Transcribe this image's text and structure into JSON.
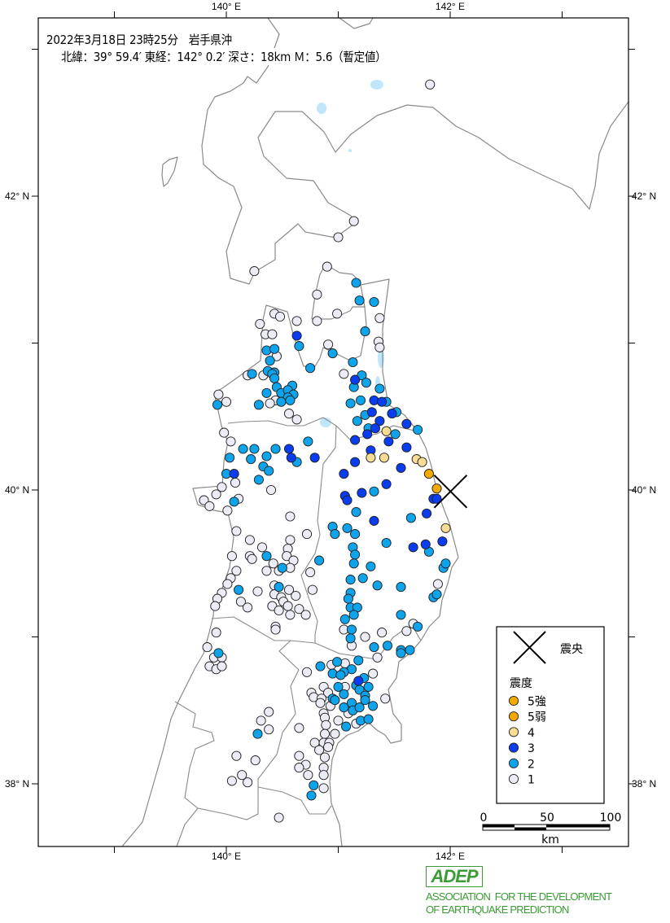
{
  "header": {
    "line1": "2022年3月18日 23時25分　岩手県沖",
    "line2": "北緯：39° 59.4′ 東経：142° 0.2′ 深さ：18km Ｍ：5.6（暫定値）"
  },
  "epicenter": {
    "lat": 39.99,
    "lon": 142.003,
    "depth_km": 18,
    "magnitude": 5.6
  },
  "axes": {
    "lon_labels": [
      {
        "lon": 140,
        "text": "140° E"
      },
      {
        "lon": 142,
        "text": "142° E"
      }
    ],
    "lat_labels": [
      {
        "lat": 42,
        "text": "42° N"
      },
      {
        "lat": 40,
        "text": "40° N"
      },
      {
        "lat": 38,
        "text": "38° N"
      }
    ]
  },
  "legend": {
    "epicenter_label": "震央",
    "intensity_title": "震度",
    "items": [
      {
        "key": "5+",
        "label": "5強",
        "color": "#f5a800"
      },
      {
        "key": "5-",
        "label": "5弱",
        "color": "#f5a800"
      },
      {
        "key": "4",
        "label": "4",
        "color": "#f8dc95"
      },
      {
        "key": "3",
        "label": "3",
        "color": "#0a3cf0"
      },
      {
        "key": "2",
        "label": "2",
        "color": "#0ea4ec"
      },
      {
        "key": "1",
        "label": "1",
        "color": "#ececf6"
      }
    ]
  },
  "scale_bar": {
    "labels": [
      "0",
      "50",
      "100"
    ],
    "unit": "km"
  },
  "logo": {
    "abbr": "ADEP",
    "line1": "ASSOCIATION  FOR THE DEVELOPMENT",
    "line2": "OF EARTHQUAKE PREDICTION"
  },
  "stations": [
    [
      141.81,
      40.11,
      "5-"
    ],
    [
      141.88,
      40.01,
      "5-"
    ],
    [
      141.43,
      40.4,
      "4"
    ],
    [
      141.29,
      40.22,
      "4"
    ],
    [
      141.41,
      40.22,
      "4"
    ],
    [
      141.7,
      40.21,
      "4"
    ],
    [
      141.75,
      40.19,
      "4"
    ],
    [
      141.96,
      39.74,
      "4"
    ],
    [
      141.15,
      40.75,
      "3"
    ],
    [
      141.32,
      40.61,
      "3"
    ],
    [
      141.39,
      40.6,
      "3"
    ],
    [
      141.3,
      40.53,
      "3"
    ],
    [
      141.48,
      40.52,
      "3"
    ],
    [
      141.37,
      40.47,
      "3"
    ],
    [
      141.61,
      40.45,
      "3"
    ],
    [
      141.33,
      40.42,
      "3"
    ],
    [
      141.26,
      40.38,
      "3"
    ],
    [
      141.15,
      40.34,
      "3"
    ],
    [
      141.45,
      40.33,
      "3"
    ],
    [
      141.61,
      40.29,
      "3"
    ],
    [
      141.29,
      40.27,
      "3"
    ],
    [
      141.15,
      40.19,
      "3"
    ],
    [
      141.56,
      40.15,
      "3"
    ],
    [
      141.05,
      40.11,
      "3"
    ],
    [
      141.43,
      40.04,
      "3"
    ],
    [
      141.21,
      39.98,
      "3"
    ],
    [
      141.06,
      39.96,
      "3"
    ],
    [
      141.08,
      39.93,
      "3"
    ],
    [
      141.85,
      39.94,
      "3"
    ],
    [
      141.88,
      39.94,
      "3"
    ],
    [
      141.79,
      39.84,
      "3"
    ],
    [
      141.32,
      39.79,
      "3"
    ],
    [
      141.67,
      39.61,
      "3"
    ],
    [
      141.78,
      39.63,
      "3"
    ],
    [
      141.93,
      39.65,
      "3"
    ],
    [
      140.63,
      41.05,
      "3"
    ],
    [
      140.56,
      40.28,
      "3"
    ],
    [
      140.58,
      40.22,
      "3"
    ],
    [
      140.79,
      40.22,
      "3"
    ],
    [
      140.07,
      40.11,
      "3"
    ],
    [
      141.18,
      38.7,
      "3"
    ],
    [
      141.21,
      40.78,
      "2"
    ],
    [
      141.25,
      40.73,
      "2"
    ],
    [
      141.14,
      40.7,
      "2"
    ],
    [
      141.37,
      40.69,
      "2"
    ],
    [
      141.11,
      40.59,
      "2"
    ],
    [
      141.2,
      40.61,
      "2"
    ],
    [
      141.43,
      40.6,
      "2"
    ],
    [
      141.24,
      40.51,
      "2"
    ],
    [
      141.52,
      40.53,
      "2"
    ],
    [
      141.17,
      40.47,
      "2"
    ],
    [
      141.27,
      40.42,
      "2"
    ],
    [
      141.51,
      40.38,
      "2"
    ],
    [
      141.71,
      40.41,
      "2"
    ],
    [
      141.32,
      39.99,
      "2"
    ],
    [
      141.16,
      39.85,
      "2"
    ],
    [
      141.65,
      39.81,
      "2"
    ],
    [
      140.95,
      39.75,
      "2"
    ],
    [
      140.97,
      39.7,
      "2"
    ],
    [
      141.08,
      39.74,
      "2"
    ],
    [
      141.15,
      39.7,
      "2"
    ],
    [
      141.13,
      39.61,
      "2"
    ],
    [
      141.15,
      39.56,
      "2"
    ],
    [
      141.43,
      39.64,
      "2"
    ],
    [
      141.81,
      39.58,
      "2"
    ],
    [
      141.16,
      41.41,
      "2"
    ],
    [
      141.19,
      41.29,
      "2"
    ],
    [
      141.32,
      41.28,
      "2"
    ],
    [
      141.24,
      41.08,
      "2"
    ],
    [
      140.65,
      40.98,
      "2"
    ],
    [
      140.36,
      40.95,
      "2"
    ],
    [
      140.43,
      40.96,
      "2"
    ],
    [
      140.39,
      40.88,
      "2"
    ],
    [
      140.95,
      40.93,
      "2"
    ],
    [
      141.13,
      40.87,
      "2"
    ],
    [
      140.75,
      40.83,
      "2"
    ],
    [
      140.37,
      40.81,
      "2"
    ],
    [
      140.43,
      40.8,
      "2"
    ],
    [
      140.41,
      40.79,
      "2"
    ],
    [
      140.23,
      40.79,
      "2"
    ],
    [
      140.43,
      40.76,
      "2"
    ],
    [
      140.45,
      40.7,
      "2"
    ],
    [
      140.59,
      40.71,
      "2"
    ],
    [
      140.49,
      40.66,
      "2"
    ],
    [
      140.55,
      40.68,
      "2"
    ],
    [
      140.6,
      40.65,
      "2"
    ],
    [
      140.36,
      40.66,
      "2"
    ],
    [
      140.55,
      40.63,
      "2"
    ],
    [
      140.57,
      40.61,
      "2"
    ],
    [
      140.49,
      40.6,
      "2"
    ],
    [
      140.29,
      40.58,
      "2"
    ],
    [
      139.92,
      40.58,
      "2"
    ],
    [
      140.73,
      40.33,
      "2"
    ],
    [
      140.15,
      40.28,
      "2"
    ],
    [
      140.25,
      40.28,
      "2"
    ],
    [
      140.44,
      40.28,
      "2"
    ],
    [
      140.63,
      40.19,
      "2"
    ],
    [
      140.22,
      40.21,
      "2"
    ],
    [
      140.36,
      40.23,
      "2"
    ],
    [
      140.03,
      40.22,
      "2"
    ],
    [
      140.33,
      40.16,
      "2"
    ],
    [
      140.38,
      40.13,
      "2"
    ],
    [
      140.0,
      40.11,
      "2"
    ],
    [
      140.29,
      40.07,
      "2"
    ],
    [
      140.07,
      39.92,
      "2"
    ],
    [
      140.36,
      39.55,
      "2"
    ],
    [
      140.5,
      39.47,
      "2"
    ],
    [
      140.83,
      39.52,
      "2"
    ],
    [
      140.11,
      39.32,
      "2"
    ],
    [
      140.47,
      39.34,
      "2"
    ],
    [
      139.93,
      38.89,
      "2"
    ],
    [
      141.14,
      39.5,
      "2"
    ],
    [
      141.29,
      39.48,
      "2"
    ],
    [
      141.94,
      39.47,
      "2"
    ],
    [
      141.96,
      39.5,
      "2"
    ],
    [
      141.11,
      39.39,
      "2"
    ],
    [
      141.22,
      39.4,
      "2"
    ],
    [
      141.35,
      39.35,
      "2"
    ],
    [
      141.56,
      39.34,
      "2"
    ],
    [
      141.11,
      39.3,
      "2"
    ],
    [
      141.09,
      39.26,
      "2"
    ],
    [
      141.85,
      39.27,
      "2"
    ],
    [
      141.88,
      39.29,
      "2"
    ],
    [
      141.11,
      39.2,
      "2"
    ],
    [
      141.17,
      39.2,
      "2"
    ],
    [
      141.14,
      39.15,
      "2"
    ],
    [
      141.06,
      39.12,
      "2"
    ],
    [
      141.56,
      39.15,
      "2"
    ],
    [
      141.71,
      39.07,
      "2"
    ],
    [
      141.12,
      39.05,
      "2"
    ],
    [
      141.11,
      38.99,
      "2"
    ],
    [
      141.32,
      38.93,
      "2"
    ],
    [
      141.44,
      38.94,
      "2"
    ],
    [
      141.56,
      38.91,
      "2"
    ],
    [
      141.64,
      38.91,
      "2"
    ],
    [
      141.56,
      38.89,
      "2"
    ],
    [
      141.18,
      38.84,
      "2"
    ],
    [
      140.99,
      38.83,
      "2"
    ],
    [
      140.84,
      38.8,
      "2"
    ],
    [
      141.12,
      38.78,
      "2"
    ],
    [
      141.05,
      38.76,
      "2"
    ],
    [
      140.95,
      38.75,
      "2"
    ],
    [
      141.02,
      38.74,
      "2"
    ],
    [
      141.23,
      38.72,
      "2"
    ],
    [
      141.27,
      38.66,
      "2"
    ],
    [
      141.16,
      38.67,
      "2"
    ],
    [
      141.19,
      38.64,
      "2"
    ],
    [
      141.0,
      38.66,
      "2"
    ],
    [
      141.05,
      38.61,
      "2"
    ],
    [
      141.24,
      38.6,
      "2"
    ],
    [
      141.24,
      38.57,
      "2"
    ],
    [
      140.95,
      38.58,
      "2"
    ],
    [
      140.97,
      38.57,
      "2"
    ],
    [
      141.12,
      38.55,
      "2"
    ],
    [
      141.05,
      38.52,
      "2"
    ],
    [
      141.13,
      38.5,
      "2"
    ],
    [
      141.19,
      38.52,
      "2"
    ],
    [
      141.31,
      38.53,
      "2"
    ],
    [
      141.07,
      38.39,
      "2"
    ],
    [
      141.2,
      38.43,
      "2"
    ],
    [
      141.27,
      38.44,
      "2"
    ],
    [
      140.28,
      38.34,
      "2"
    ],
    [
      140.78,
      37.99,
      "2"
    ],
    [
      140.76,
      37.92,
      "2"
    ],
    [
      141.82,
      42.76,
      "1"
    ],
    [
      141.14,
      41.83,
      "1"
    ],
    [
      141.0,
      41.72,
      "1"
    ],
    [
      140.25,
      41.49,
      "1"
    ],
    [
      140.9,
      41.52,
      "1"
    ],
    [
      140.81,
      41.33,
      "1"
    ],
    [
      141.37,
      41.17,
      "1"
    ],
    [
      140.99,
      41.2,
      "1"
    ],
    [
      140.81,
      41.15,
      "1"
    ],
    [
      140.43,
      41.2,
      "1"
    ],
    [
      140.48,
      41.18,
      "1"
    ],
    [
      140.63,
      41.15,
      "1"
    ],
    [
      140.3,
      41.13,
      "1"
    ],
    [
      140.35,
      41.06,
      "1"
    ],
    [
      140.41,
      41.06,
      "1"
    ],
    [
      141.36,
      41.01,
      "1"
    ],
    [
      141.37,
      40.97,
      "1"
    ],
    [
      140.91,
      40.99,
      "1"
    ],
    [
      140.45,
      40.91,
      "1"
    ],
    [
      141.05,
      40.79,
      "1"
    ],
    [
      140.19,
      40.78,
      "1"
    ],
    [
      140.33,
      40.78,
      "1"
    ],
    [
      140.44,
      40.61,
      "1"
    ],
    [
      140.39,
      40.59,
      "1"
    ],
    [
      139.93,
      40.65,
      "1"
    ],
    [
      140.0,
      40.6,
      "1"
    ],
    [
      140.56,
      40.52,
      "1"
    ],
    [
      140.63,
      40.48,
      "1"
    ],
    [
      139.98,
      40.39,
      "1"
    ],
    [
      140.04,
      40.33,
      "1"
    ],
    [
      140.08,
      40.05,
      "1"
    ],
    [
      140.4,
      40.0,
      "1"
    ],
    [
      139.96,
      40.02,
      "1"
    ],
    [
      139.91,
      39.97,
      "1"
    ],
    [
      139.8,
      39.93,
      "1"
    ],
    [
      139.85,
      39.89,
      "1"
    ],
    [
      140.11,
      39.94,
      "1"
    ],
    [
      140.01,
      39.86,
      "1"
    ],
    [
      140.57,
      39.82,
      "1"
    ],
    [
      140.09,
      39.72,
      "1"
    ],
    [
      140.72,
      39.7,
      "1"
    ],
    [
      140.21,
      39.66,
      "1"
    ],
    [
      140.57,
      39.66,
      "1"
    ],
    [
      140.32,
      39.61,
      "1"
    ],
    [
      140.55,
      39.6,
      "1"
    ],
    [
      140.05,
      39.55,
      "1"
    ],
    [
      140.21,
      39.55,
      "1"
    ],
    [
      140.23,
      39.53,
      "1"
    ],
    [
      140.54,
      39.55,
      "1"
    ],
    [
      140.6,
      39.52,
      "1"
    ],
    [
      140.42,
      39.5,
      "1"
    ],
    [
      140.57,
      39.47,
      "1"
    ],
    [
      140.36,
      39.45,
      "1"
    ],
    [
      140.47,
      39.45,
      "1"
    ],
    [
      140.09,
      39.45,
      "1"
    ],
    [
      140.75,
      39.44,
      "1"
    ],
    [
      140.04,
      39.4,
      "1"
    ],
    [
      140.01,
      39.36,
      "1"
    ],
    [
      140.28,
      39.31,
      "1"
    ],
    [
      140.43,
      39.35,
      "1"
    ],
    [
      140.56,
      39.32,
      "1"
    ],
    [
      140.62,
      39.28,
      "1"
    ],
    [
      140.43,
      39.29,
      "1"
    ],
    [
      140.49,
      39.27,
      "1"
    ],
    [
      140.77,
      39.32,
      "1"
    ],
    [
      139.96,
      39.3,
      "1"
    ],
    [
      139.92,
      39.26,
      "1"
    ],
    [
      139.9,
      39.21,
      "1"
    ],
    [
      140.13,
      39.24,
      "1"
    ],
    [
      140.19,
      39.2,
      "1"
    ],
    [
      140.51,
      39.24,
      "1"
    ],
    [
      140.41,
      39.21,
      "1"
    ],
    [
      140.47,
      39.18,
      "1"
    ],
    [
      140.55,
      39.21,
      "1"
    ],
    [
      140.65,
      39.19,
      "1"
    ],
    [
      140.57,
      39.15,
      "1"
    ],
    [
      140.71,
      39.15,
      "1"
    ],
    [
      140.44,
      39.07,
      "1"
    ],
    [
      140.44,
      39.05,
      "1"
    ],
    [
      139.91,
      39.03,
      "1"
    ],
    [
      139.83,
      38.93,
      "1"
    ],
    [
      139.89,
      38.86,
      "1"
    ],
    [
      139.96,
      38.86,
      "1"
    ],
    [
      139.85,
      38.8,
      "1"
    ],
    [
      139.91,
      38.78,
      "1"
    ],
    [
      139.96,
      38.8,
      "1"
    ],
    [
      140.72,
      38.76,
      "1"
    ],
    [
      141.89,
      39.36,
      "1"
    ],
    [
      141.67,
      39.09,
      "1"
    ],
    [
      141.05,
      39.05,
      "1"
    ],
    [
      141.39,
      39.03,
      "1"
    ],
    [
      141.61,
      39.04,
      "1"
    ],
    [
      141.24,
      39.0,
      "1"
    ],
    [
      141.12,
      38.94,
      "1"
    ],
    [
      141.35,
      38.86,
      "1"
    ],
    [
      140.94,
      38.81,
      "1"
    ],
    [
      141.06,
      38.82,
      "1"
    ],
    [
      141.31,
      38.75,
      "1"
    ],
    [
      141.06,
      38.66,
      "1"
    ],
    [
      140.87,
      38.66,
      "1"
    ],
    [
      140.76,
      38.62,
      "1"
    ],
    [
      140.91,
      38.62,
      "1"
    ],
    [
      141.42,
      38.58,
      "1"
    ],
    [
      140.78,
      38.59,
      "1"
    ],
    [
      140.85,
      38.58,
      "1"
    ],
    [
      140.84,
      38.55,
      "1"
    ],
    [
      140.93,
      38.53,
      "1"
    ],
    [
      140.87,
      38.48,
      "1"
    ],
    [
      140.88,
      38.45,
      "1"
    ],
    [
      141.09,
      38.48,
      "1"
    ],
    [
      141.0,
      38.43,
      "1"
    ],
    [
      141.16,
      38.41,
      "1"
    ],
    [
      140.89,
      38.4,
      "1"
    ],
    [
      140.88,
      38.34,
      "1"
    ],
    [
      140.97,
      38.34,
      "1"
    ],
    [
      140.65,
      38.38,
      "1"
    ],
    [
      140.38,
      38.49,
      "1"
    ],
    [
      140.31,
      38.43,
      "1"
    ],
    [
      140.38,
      38.37,
      "1"
    ],
    [
      140.79,
      38.28,
      "1"
    ],
    [
      140.87,
      38.28,
      "1"
    ],
    [
      140.92,
      38.28,
      "1"
    ],
    [
      140.91,
      38.25,
      "1"
    ],
    [
      140.83,
      38.23,
      "1"
    ],
    [
      140.65,
      38.19,
      "1"
    ],
    [
      140.88,
      38.18,
      "1"
    ],
    [
      140.71,
      38.13,
      "1"
    ],
    [
      140.65,
      38.11,
      "1"
    ],
    [
      140.87,
      38.11,
      "1"
    ],
    [
      140.73,
      38.06,
      "1"
    ],
    [
      140.87,
      38.06,
      "1"
    ],
    [
      140.87,
      37.97,
      "1"
    ],
    [
      140.09,
      38.19,
      "1"
    ],
    [
      140.26,
      38.16,
      "1"
    ],
    [
      140.14,
      38.06,
      "1"
    ],
    [
      140.05,
      38.02,
      "1"
    ],
    [
      140.19,
      38.01,
      "1"
    ],
    [
      140.47,
      37.77,
      "1"
    ]
  ]
}
